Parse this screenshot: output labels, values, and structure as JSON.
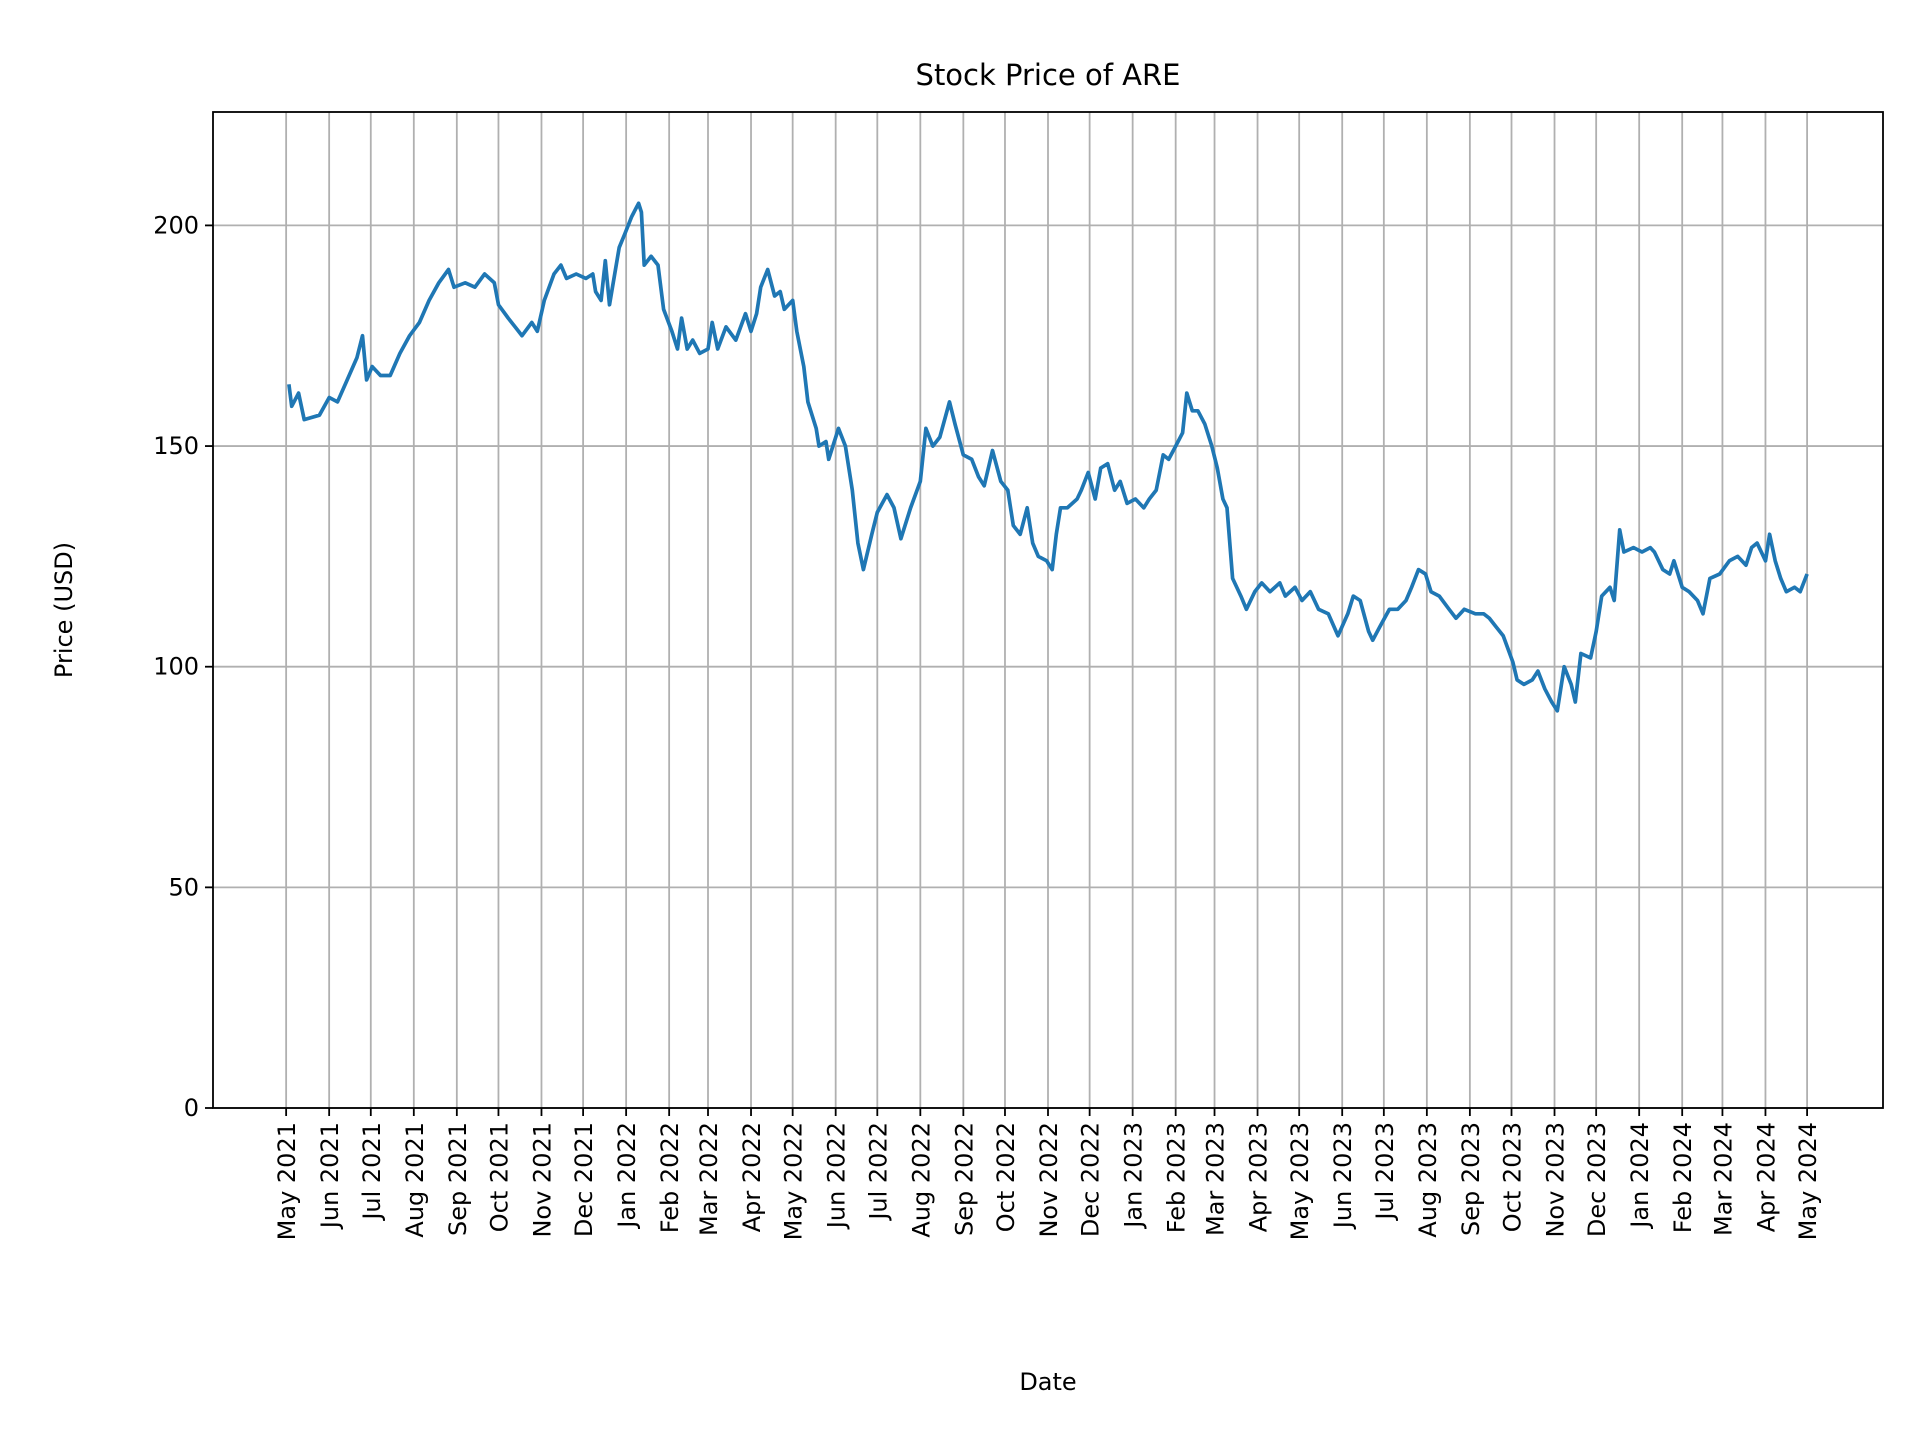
{
  "chart_data": {
    "type": "line",
    "title": "Stock Price of ARE",
    "xlabel": "Date",
    "ylabel": "Price (USD)",
    "ylim": [
      0,
      225.7
    ],
    "yticks": [
      0,
      50,
      100,
      150,
      200
    ],
    "grid": true,
    "line_color": "#1f77b4",
    "grid_color": "#b0b0b0",
    "xtick_dates": [
      "2021-05-01",
      "2021-06-01",
      "2021-07-01",
      "2021-08-01",
      "2021-09-01",
      "2021-10-01",
      "2021-11-01",
      "2021-12-01",
      "2022-01-01",
      "2022-02-01",
      "2022-03-01",
      "2022-04-01",
      "2022-05-01",
      "2022-06-01",
      "2022-07-01",
      "2022-08-01",
      "2022-09-01",
      "2022-10-01",
      "2022-11-01",
      "2022-12-01",
      "2023-01-01",
      "2023-02-01",
      "2023-03-01",
      "2023-04-01",
      "2023-05-01",
      "2023-06-01",
      "2023-07-01",
      "2023-08-01",
      "2023-09-01",
      "2023-10-01",
      "2023-11-01",
      "2023-12-01",
      "2024-01-01",
      "2024-02-01",
      "2024-03-01",
      "2024-04-01",
      "2024-05-01"
    ],
    "xtick_labels": [
      "May 2021",
      "Jun 2021",
      "Jul 2021",
      "Aug 2021",
      "Sep 2021",
      "Oct 2021",
      "Nov 2021",
      "Dec 2021",
      "Jan 2022",
      "Feb 2022",
      "Mar 2022",
      "Apr 2022",
      "May 2022",
      "Jun 2022",
      "Jul 2022",
      "Aug 2022",
      "Sep 2022",
      "Oct 2022",
      "Nov 2022",
      "Dec 2022",
      "Jan 2023",
      "Feb 2023",
      "Mar 2023",
      "Apr 2023",
      "May 2023",
      "Jun 2023",
      "Jul 2023",
      "Aug 2023",
      "Sep 2023",
      "Oct 2023",
      "Nov 2023",
      "Dec 2023",
      "Jan 2024",
      "Feb 2024",
      "Mar 2024",
      "Apr 2024",
      "May 2024"
    ],
    "series": [
      {
        "x": [
          "2021-05-03",
          "2021-05-05",
          "2021-05-10",
          "2021-05-14",
          "2021-05-25",
          "2021-06-01",
          "2021-06-07",
          "2021-06-14",
          "2021-06-21",
          "2021-06-25",
          "2021-06-28",
          "2021-07-02",
          "2021-07-08",
          "2021-07-15",
          "2021-07-22",
          "2021-07-29",
          "2021-08-05",
          "2021-08-12",
          "2021-08-19",
          "2021-08-26",
          "2021-08-30",
          "2021-09-07",
          "2021-09-14",
          "2021-09-21",
          "2021-09-28",
          "2021-10-01",
          "2021-10-08",
          "2021-10-13",
          "2021-10-18",
          "2021-10-25",
          "2021-10-29",
          "2021-11-03",
          "2021-11-10",
          "2021-11-15",
          "2021-11-19",
          "2021-11-26",
          "2021-12-03",
          "2021-12-08",
          "2021-12-10",
          "2021-12-14",
          "2021-12-17",
          "2021-12-20",
          "2021-12-27",
          "2021-12-31",
          "2022-01-05",
          "2022-01-10",
          "2022-01-12",
          "2022-01-14",
          "2022-01-19",
          "2022-01-24",
          "2022-01-28",
          "2022-02-03",
          "2022-02-07",
          "2022-02-10",
          "2022-02-14",
          "2022-02-18",
          "2022-02-23",
          "2022-03-01",
          "2022-03-04",
          "2022-03-08",
          "2022-03-14",
          "2022-03-21",
          "2022-03-28",
          "2022-04-01",
          "2022-04-05",
          "2022-04-08",
          "2022-04-13",
          "2022-04-18",
          "2022-04-22",
          "2022-04-25",
          "2022-05-01",
          "2022-05-04",
          "2022-05-09",
          "2022-05-12",
          "2022-05-18",
          "2022-05-20",
          "2022-05-25",
          "2022-05-27",
          "2022-06-03",
          "2022-06-08",
          "2022-06-13",
          "2022-06-17",
          "2022-06-21",
          "2022-06-27",
          "2022-07-01",
          "2022-07-08",
          "2022-07-13",
          "2022-07-18",
          "2022-07-25",
          "2022-08-01",
          "2022-08-05",
          "2022-08-10",
          "2022-08-15",
          "2022-08-22",
          "2022-08-26",
          "2022-09-01",
          "2022-09-07",
          "2022-09-12",
          "2022-09-16",
          "2022-09-22",
          "2022-09-28",
          "2022-10-03",
          "2022-10-07",
          "2022-10-12",
          "2022-10-17",
          "2022-10-21",
          "2022-10-25",
          "2022-10-31",
          "2022-11-04",
          "2022-11-07",
          "2022-11-10",
          "2022-11-15",
          "2022-11-22",
          "2022-11-25",
          "2022-11-30",
          "2022-12-05",
          "2022-12-09",
          "2022-12-14",
          "2022-12-19",
          "2022-12-23",
          "2022-12-28",
          "2023-01-03",
          "2023-01-09",
          "2023-01-13",
          "2023-01-18",
          "2023-01-23",
          "2023-01-27",
          "2023-02-01",
          "2023-02-06",
          "2023-02-09",
          "2023-02-13",
          "2023-02-17",
          "2023-02-22",
          "2023-02-27",
          "2023-03-03",
          "2023-03-07",
          "2023-03-10",
          "2023-03-14",
          "2023-03-20",
          "2023-03-24",
          "2023-03-30",
          "2023-04-04",
          "2023-04-10",
          "2023-04-17",
          "2023-04-21",
          "2023-04-28",
          "2023-05-03",
          "2023-05-09",
          "2023-05-15",
          "2023-05-22",
          "2023-05-29",
          "2023-06-05",
          "2023-06-09",
          "2023-06-14",
          "2023-06-20",
          "2023-06-23",
          "2023-06-28",
          "2023-07-05",
          "2023-07-11",
          "2023-07-17",
          "2023-07-21",
          "2023-07-26",
          "2023-07-31",
          "2023-08-04",
          "2023-08-10",
          "2023-08-17",
          "2023-08-22",
          "2023-08-28",
          "2023-09-05",
          "2023-09-11",
          "2023-09-15",
          "2023-09-20",
          "2023-09-25",
          "2023-10-02",
          "2023-10-05",
          "2023-10-10",
          "2023-10-16",
          "2023-10-20",
          "2023-10-25",
          "2023-10-30",
          "2023-11-03",
          "2023-11-08",
          "2023-11-13",
          "2023-11-16",
          "2023-11-20",
          "2023-11-27",
          "2023-12-01",
          "2023-12-05",
          "2023-12-11",
          "2023-12-14",
          "2023-12-18",
          "2023-12-21",
          "2023-12-28",
          "2024-01-03",
          "2024-01-09",
          "2024-01-12",
          "2024-01-18",
          "2024-01-23",
          "2024-01-26",
          "2024-02-01",
          "2024-02-06",
          "2024-02-12",
          "2024-02-16",
          "2024-02-21",
          "2024-02-28",
          "2024-03-06",
          "2024-03-12",
          "2024-03-18",
          "2024-03-22",
          "2024-03-26",
          "2024-04-01",
          "2024-04-04",
          "2024-04-08",
          "2024-04-12",
          "2024-04-16",
          "2024-04-22",
          "2024-04-26",
          "2024-05-01"
        ],
        "y": [
          164,
          159,
          162,
          156,
          157,
          161,
          160,
          165,
          170,
          175,
          165,
          168,
          166,
          166,
          171,
          175,
          178,
          183,
          187,
          190,
          186,
          187,
          186,
          189,
          187,
          182,
          179,
          177,
          175,
          178,
          176,
          183,
          189,
          191,
          188,
          189,
          188,
          189,
          185,
          183,
          192,
          182,
          195,
          198,
          202,
          205,
          203,
          191,
          193,
          191,
          181,
          176,
          172,
          179,
          172,
          174,
          171,
          172,
          178,
          172,
          177,
          174,
          180,
          176,
          180,
          186,
          190,
          184,
          185,
          181,
          183,
          176,
          168,
          160,
          154,
          150,
          151,
          147,
          154,
          150,
          140,
          128,
          122,
          130,
          135,
          139,
          136,
          129,
          136,
          142,
          154,
          150,
          152,
          160,
          155,
          148,
          147,
          143,
          141,
          149,
          142,
          140,
          132,
          130,
          136,
          128,
          125,
          124,
          122,
          130,
          136,
          136,
          138,
          140,
          144,
          138,
          145,
          146,
          140,
          142,
          137,
          138,
          136,
          138,
          140,
          148,
          147,
          150,
          153,
          162,
          158,
          158,
          155,
          150,
          145,
          138,
          136,
          120,
          116,
          113,
          117,
          119,
          117,
          119,
          116,
          118,
          115,
          117,
          113,
          112,
          107,
          112,
          116,
          115,
          108,
          106,
          109,
          113,
          113,
          115,
          118,
          122,
          121,
          117,
          116,
          113,
          111,
          113,
          112,
          112,
          111,
          109,
          107,
          101,
          97,
          96,
          97,
          99,
          95,
          92,
          90,
          100,
          96,
          92,
          103,
          102,
          108,
          116,
          118,
          115,
          131,
          126,
          127,
          126,
          127,
          126,
          122,
          121,
          124,
          118,
          117,
          115,
          112,
          120,
          121,
          124,
          125,
          123,
          127,
          128,
          124,
          130,
          124,
          120,
          117,
          118,
          117,
          121
        ]
      }
    ]
  }
}
